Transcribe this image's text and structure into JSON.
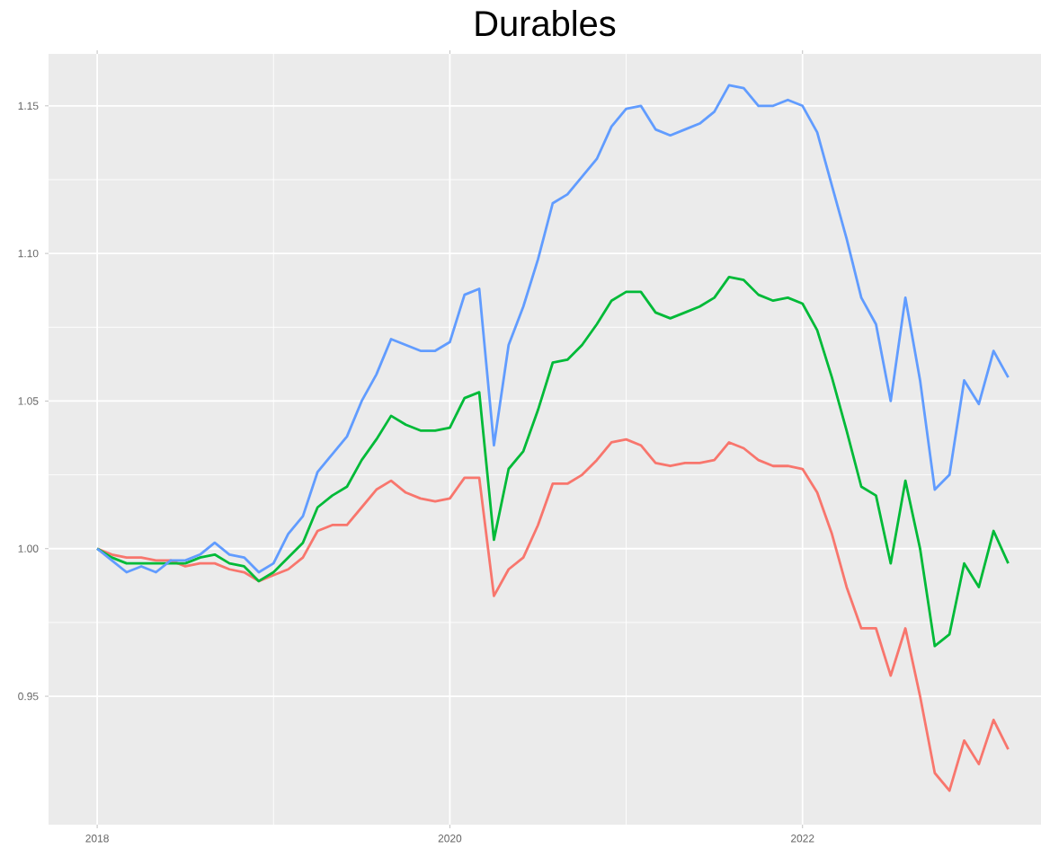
{
  "chart_data": {
    "type": "line",
    "title": "Durables",
    "x": [
      "2018-01",
      "2018-02",
      "2018-03",
      "2018-04",
      "2018-05",
      "2018-06",
      "2018-07",
      "2018-08",
      "2018-09",
      "2018-10",
      "2018-11",
      "2018-12",
      "2019-01",
      "2019-02",
      "2019-03",
      "2019-04",
      "2019-05",
      "2019-06",
      "2019-07",
      "2019-08",
      "2019-09",
      "2019-10",
      "2019-11",
      "2019-12",
      "2020-01",
      "2020-02",
      "2020-03",
      "2020-04",
      "2020-05",
      "2020-06",
      "2020-07",
      "2020-08",
      "2020-09",
      "2020-10",
      "2020-11",
      "2020-12",
      "2021-01",
      "2021-02",
      "2021-03",
      "2021-04",
      "2021-05",
      "2021-06",
      "2021-07",
      "2021-08",
      "2021-09",
      "2021-10",
      "2021-11",
      "2021-12",
      "2022-01",
      "2022-02",
      "2022-03",
      "2022-04",
      "2022-05",
      "2022-06",
      "2022-07",
      "2022-08",
      "2022-09",
      "2022-10",
      "2022-11",
      "2022-12",
      "2023-01",
      "2023-02",
      "2023-03"
    ],
    "series": [
      {
        "color": "#f8766d",
        "values": [
          1.0,
          0.998,
          0.997,
          0.997,
          0.996,
          0.996,
          0.994,
          0.995,
          0.995,
          0.993,
          0.992,
          0.989,
          0.991,
          0.993,
          0.997,
          1.006,
          1.008,
          1.008,
          1.014,
          1.02,
          1.023,
          1.019,
          1.017,
          1.016,
          1.017,
          1.024,
          1.024,
          0.984,
          0.993,
          0.997,
          1.008,
          1.022,
          1.022,
          1.025,
          1.03,
          1.036,
          1.037,
          1.035,
          1.029,
          1.028,
          1.029,
          1.029,
          1.03,
          1.036,
          1.034,
          1.03,
          1.028,
          1.028,
          1.027,
          1.019,
          1.005,
          0.987,
          0.973,
          0.973,
          0.957,
          0.973,
          0.95,
          0.924,
          0.918,
          0.935,
          0.927,
          0.942,
          0.932
        ]
      },
      {
        "color": "#00ba38",
        "values": [
          1.0,
          0.997,
          0.995,
          0.995,
          0.995,
          0.995,
          0.995,
          0.997,
          0.998,
          0.995,
          0.994,
          0.989,
          0.992,
          0.997,
          1.002,
          1.014,
          1.018,
          1.021,
          1.03,
          1.037,
          1.045,
          1.042,
          1.04,
          1.04,
          1.041,
          1.051,
          1.053,
          1.003,
          1.027,
          1.033,
          1.047,
          1.063,
          1.064,
          1.069,
          1.076,
          1.084,
          1.087,
          1.087,
          1.08,
          1.078,
          1.08,
          1.082,
          1.085,
          1.092,
          1.091,
          1.086,
          1.084,
          1.085,
          1.083,
          1.074,
          1.058,
          1.04,
          1.021,
          1.018,
          0.995,
          1.023,
          1.0,
          0.967,
          0.971,
          0.995,
          0.987,
          1.006,
          0.995
        ]
      },
      {
        "color": "#619cff",
        "values": [
          1.0,
          0.996,
          0.992,
          0.994,
          0.992,
          0.996,
          0.996,
          0.998,
          1.002,
          0.998,
          0.997,
          0.992,
          0.995,
          1.005,
          1.011,
          1.026,
          1.032,
          1.038,
          1.05,
          1.059,
          1.071,
          1.069,
          1.067,
          1.067,
          1.07,
          1.086,
          1.088,
          1.035,
          1.069,
          1.082,
          1.098,
          1.117,
          1.12,
          1.126,
          1.132,
          1.143,
          1.149,
          1.15,
          1.142,
          1.14,
          1.142,
          1.144,
          1.148,
          1.157,
          1.156,
          1.15,
          1.15,
          1.152,
          1.15,
          1.141,
          1.123,
          1.105,
          1.085,
          1.076,
          1.05,
          1.085,
          1.057,
          1.02,
          1.025,
          1.057,
          1.049,
          1.067,
          1.058
        ]
      }
    ],
    "xlim": [
      "2017-09-22",
      "2023-05-08"
    ],
    "xticks": [
      {
        "value": "2018-01-01",
        "label": "2018"
      },
      {
        "value": "2020-01-01",
        "label": "2020"
      },
      {
        "value": "2022-01-01",
        "label": "2022"
      }
    ],
    "ylim": [
      0.9065,
      1.1676
    ],
    "yticks": [
      {
        "value": 0.95,
        "label": "0.95"
      },
      {
        "value": 1.0,
        "label": "1.00"
      },
      {
        "value": 1.05,
        "label": "1.05"
      },
      {
        "value": 1.1,
        "label": "1.10"
      },
      {
        "value": 1.15,
        "label": "1.15"
      }
    ],
    "grid": true
  }
}
